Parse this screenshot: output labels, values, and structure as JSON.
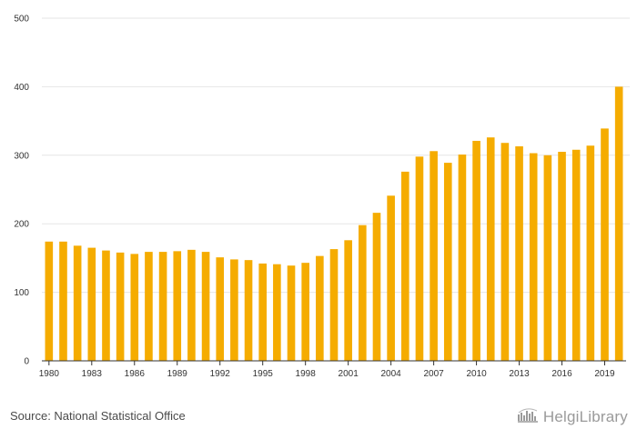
{
  "chart_data": {
    "type": "bar",
    "title": "",
    "xlabel": "",
    "ylabel": "",
    "ylim": [
      0,
      500
    ],
    "yticks": [
      0,
      100,
      200,
      300,
      400,
      500
    ],
    "categories": [
      "1980",
      "1981",
      "1982",
      "1983",
      "1984",
      "1985",
      "1986",
      "1987",
      "1988",
      "1989",
      "1990",
      "1991",
      "1992",
      "1993",
      "1994",
      "1995",
      "1996",
      "1997",
      "1998",
      "1999",
      "2000",
      "2001",
      "2002",
      "2003",
      "2004",
      "2005",
      "2006",
      "2007",
      "2008",
      "2009",
      "2010",
      "2011",
      "2012",
      "2013",
      "2014",
      "2015",
      "2016",
      "2017",
      "2018",
      "2019",
      "2020"
    ],
    "xtick_labels": [
      "1980",
      "1983",
      "1986",
      "1989",
      "1992",
      "1995",
      "1998",
      "2001",
      "2004",
      "2007",
      "2010",
      "2013",
      "2016",
      "2019"
    ],
    "values": [
      174,
      174,
      168,
      165,
      161,
      158,
      156,
      159,
      159,
      160,
      162,
      159,
      151,
      148,
      147,
      142,
      141,
      139,
      143,
      153,
      163,
      176,
      198,
      216,
      241,
      276,
      298,
      306,
      289,
      301,
      321,
      326,
      318,
      313,
      303,
      300,
      305,
      308,
      314,
      339,
      400
    ],
    "bar_color": "#f5ac00",
    "grid": true
  },
  "footer": {
    "source": "Source: National Statistical Office",
    "brand": "HelgiLibrary"
  },
  "colors": {
    "bar": "#f5ac00",
    "grid": "#e6e6e6",
    "axis": "#333333"
  }
}
